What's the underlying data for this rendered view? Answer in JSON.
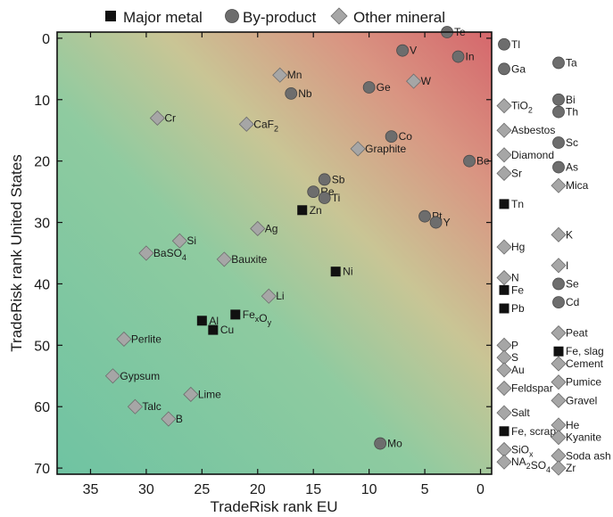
{
  "chart_data": {
    "type": "scatter",
    "title": "",
    "xlabel": "TradeRisk rank EU",
    "ylabel": "TradeRisk rank United States",
    "xlim": [
      38,
      -1
    ],
    "ylim": [
      71,
      -1
    ],
    "x_reversed": true,
    "y_reversed": true,
    "xticks": [
      35,
      30,
      25,
      20,
      15,
      10,
      5,
      0
    ],
    "yticks": [
      0,
      10,
      20,
      30,
      40,
      50,
      60,
      70
    ],
    "grid": false,
    "background": "gradient from green (bottom-left, low risk) to red (top-right, high risk)",
    "legend_position": "top",
    "legend": [
      {
        "name": "Major metal",
        "marker": "square"
      },
      {
        "name": "By-product",
        "marker": "circle"
      },
      {
        "name": "Other mineral",
        "marker": "diamond"
      }
    ],
    "colors": {
      "major_metal": "#111111",
      "by_product": "#6d6d6d",
      "other_mineral": "#a6a6a6",
      "bg_green": "#7ec9a6",
      "bg_red": "#d66b6f"
    },
    "series": [
      {
        "name": "Major metal",
        "marker": "square",
        "points": [
          {
            "label": "Zn",
            "x": 16,
            "y": 28
          },
          {
            "label": "Ni",
            "x": 13,
            "y": 38
          },
          {
            "label": "Al",
            "x": 25,
            "y": 46
          },
          {
            "label": "Cu",
            "x": 24,
            "y": 47.5
          },
          {
            "label": "FexOy",
            "x": 22,
            "y": 45
          }
        ]
      },
      {
        "name": "By-product",
        "marker": "circle",
        "points": [
          {
            "label": "Te",
            "x": 3,
            "y": -1
          },
          {
            "label": "V",
            "x": 7,
            "y": 2
          },
          {
            "label": "In",
            "x": 2,
            "y": 3
          },
          {
            "label": "Nb",
            "x": 17,
            "y": 9
          },
          {
            "label": "Ge",
            "x": 10,
            "y": 8
          },
          {
            "label": "Co",
            "x": 8,
            "y": 16
          },
          {
            "label": "Be",
            "x": 1,
            "y": 20
          },
          {
            "label": "Sb",
            "x": 14,
            "y": 23
          },
          {
            "label": "Re",
            "x": 15,
            "y": 25
          },
          {
            "label": "Ti",
            "x": 14,
            "y": 26
          },
          {
            "label": "Pt",
            "x": 5,
            "y": 29
          },
          {
            "label": "Y",
            "x": 4,
            "y": 30
          },
          {
            "label": "Mo",
            "x": 9,
            "y": 66
          }
        ]
      },
      {
        "name": "Other mineral",
        "marker": "diamond",
        "points": [
          {
            "label": "Mn",
            "x": 18,
            "y": 6
          },
          {
            "label": "W",
            "x": 6,
            "y": 7
          },
          {
            "label": "Cr",
            "x": 29,
            "y": 13
          },
          {
            "label": "CaF2",
            "x": 21,
            "y": 14
          },
          {
            "label": "Graphite",
            "x": 11,
            "y": 18
          },
          {
            "label": "Ag",
            "x": 20,
            "y": 31
          },
          {
            "label": "Si",
            "x": 27,
            "y": 33
          },
          {
            "label": "BaSO4",
            "x": 30,
            "y": 35
          },
          {
            "label": "Bauxite",
            "x": 23,
            "y": 36
          },
          {
            "label": "Li",
            "x": 19,
            "y": 42
          },
          {
            "label": "Perlite",
            "x": 32,
            "y": 49
          },
          {
            "label": "Gypsum",
            "x": 33,
            "y": 55
          },
          {
            "label": "Lime",
            "x": 26,
            "y": 58
          },
          {
            "label": "Talc",
            "x": 31,
            "y": 60
          },
          {
            "label": "B",
            "x": 28,
            "y": 62
          }
        ]
      }
    ],
    "side_columns": [
      {
        "items": [
          {
            "label": "Tl",
            "marker": "circle",
            "y": 1
          },
          {
            "label": "Ga",
            "marker": "circle",
            "y": 5
          },
          {
            "label": "TiO2",
            "marker": "diamond",
            "y": 11
          },
          {
            "label": "Asbestos",
            "marker": "diamond",
            "y": 15
          },
          {
            "label": "Diamond",
            "marker": "diamond",
            "y": 19
          },
          {
            "label": "Sr",
            "marker": "diamond",
            "y": 22
          },
          {
            "label": "Tn",
            "marker": "square",
            "y": 27
          },
          {
            "label": "Hg",
            "marker": "diamond",
            "y": 34
          },
          {
            "label": "N",
            "marker": "diamond",
            "y": 39
          },
          {
            "label": "Fe",
            "marker": "square",
            "y": 41
          },
          {
            "label": "Pb",
            "marker": "square",
            "y": 44
          },
          {
            "label": "P",
            "marker": "diamond",
            "y": 50
          },
          {
            "label": "S",
            "marker": "diamond",
            "y": 52
          },
          {
            "label": "Au",
            "marker": "diamond",
            "y": 54
          },
          {
            "label": "Feldspar",
            "marker": "diamond",
            "y": 57
          },
          {
            "label": "Salt",
            "marker": "diamond",
            "y": 61
          },
          {
            "label": "Fe, scrap",
            "marker": "square",
            "y": 64
          },
          {
            "label": "SiOx",
            "marker": "diamond",
            "y": 67
          },
          {
            "label": "NA2SO4",
            "marker": "diamond",
            "y": 69
          }
        ]
      },
      {
        "items": [
          {
            "label": "Ta",
            "marker": "circle",
            "y": 4
          },
          {
            "label": "Bi",
            "marker": "circle",
            "y": 10
          },
          {
            "label": "Th",
            "marker": "circle",
            "y": 12
          },
          {
            "label": "Sc",
            "marker": "circle",
            "y": 17
          },
          {
            "label": "As",
            "marker": "circle",
            "y": 21
          },
          {
            "label": "Mica",
            "marker": "diamond",
            "y": 24
          },
          {
            "label": "K",
            "marker": "diamond",
            "y": 32
          },
          {
            "label": "I",
            "marker": "diamond",
            "y": 37
          },
          {
            "label": "Se",
            "marker": "circle",
            "y": 40
          },
          {
            "label": "Cd",
            "marker": "circle",
            "y": 43
          },
          {
            "label": "Peat",
            "marker": "diamond",
            "y": 48
          },
          {
            "label": "Fe, slag",
            "marker": "square",
            "y": 51
          },
          {
            "label": "Cement",
            "marker": "diamond",
            "y": 53
          },
          {
            "label": "Pumice",
            "marker": "diamond",
            "y": 56
          },
          {
            "label": "Gravel",
            "marker": "diamond",
            "y": 59
          },
          {
            "label": "He",
            "marker": "diamond",
            "y": 63
          },
          {
            "label": "Kyanite",
            "marker": "diamond",
            "y": 65
          },
          {
            "label": "Soda ash",
            "marker": "diamond",
            "y": 68
          },
          {
            "label": "Zr",
            "marker": "diamond",
            "y": 70
          }
        ]
      }
    ]
  }
}
